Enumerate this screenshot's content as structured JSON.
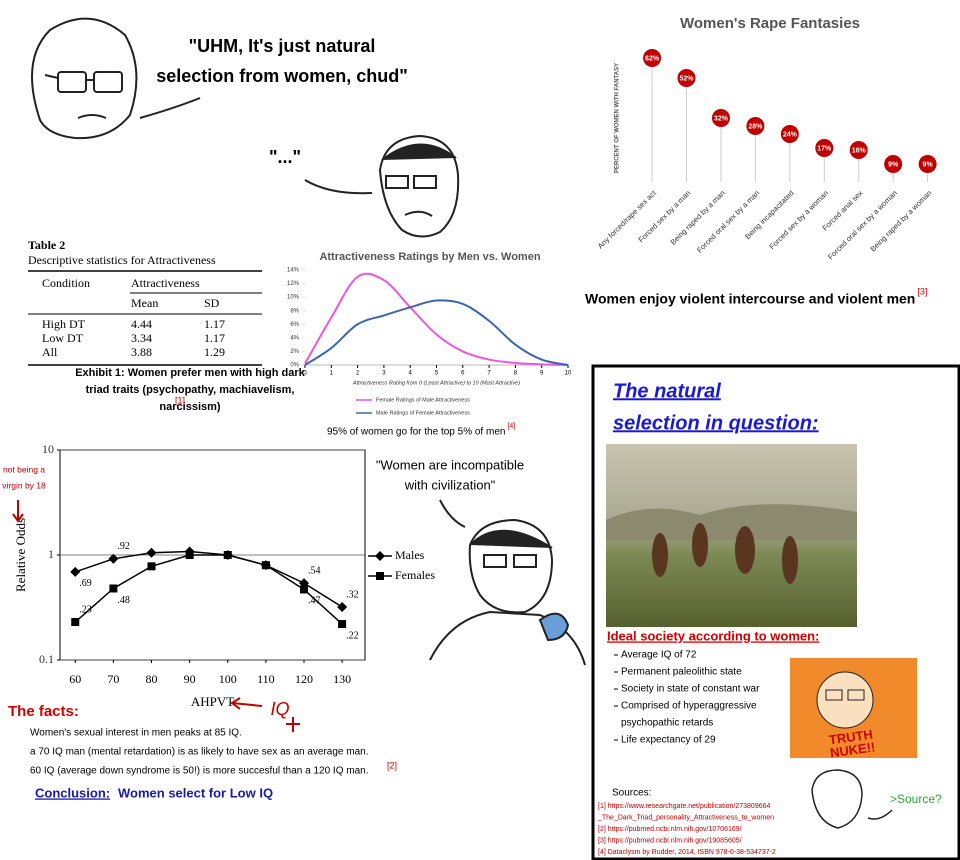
{
  "speech": {
    "wojak": [
      "\"UHM, It's just natural",
      "selection from women, chud\""
    ],
    "reply": "\"...\"",
    "incompatible": [
      "\"Women are incompatible",
      "with civilization\""
    ]
  },
  "chart_data": [
    {
      "type": "lollipop",
      "title": "Women's Rape Fantasies",
      "y_label": "PERCENT OF WOMEN WITH FANTASY",
      "categories": [
        "Any forced/rape sex act",
        "Forced sex by a man",
        "Being raped by a man",
        "Forced oral sex by a man",
        "Being incapacitated",
        "Forced sex by a woman",
        "Forced anal sex",
        "Forced oral sex by a woman",
        "Being raped by a woman"
      ],
      "values": [
        62,
        52,
        32,
        28,
        24,
        17,
        16,
        9,
        9
      ],
      "value_labels": [
        "62%",
        "52%",
        "32%",
        "28%",
        "24%",
        "17%",
        "16%",
        "9%",
        "9%"
      ],
      "color": "#c00000",
      "ylim": [
        0,
        65
      ],
      "caption": "Women enjoy  violent intercourse and violent men",
      "ref": "[3]"
    },
    {
      "type": "line",
      "title": "Attractiveness Ratings by Men vs. Women",
      "x_label": "Attractiveness Rating from 0 (Least Attractive) to 10 (Most Attractive)",
      "x": [
        0,
        1,
        2,
        3,
        4,
        5,
        6,
        7,
        8,
        9,
        10
      ],
      "xlim": [
        0,
        10
      ],
      "xticks": [
        0,
        1,
        2,
        3,
        4,
        5,
        6,
        7,
        8,
        9,
        10
      ],
      "ylim": [
        0,
        14
      ],
      "yticks": [
        {
          "value": 0,
          "label": "0%"
        },
        {
          "value": 2,
          "label": "2%"
        },
        {
          "value": 4,
          "label": "4%"
        },
        {
          "value": 6,
          "label": "6%"
        },
        {
          "value": 8,
          "label": "8%"
        },
        {
          "value": 10,
          "label": "10%"
        },
        {
          "value": 12,
          "label": "12%"
        },
        {
          "value": 14,
          "label": "14%"
        }
      ],
      "series": [
        {
          "name": "Female Ratings of Male Attractiveness",
          "color": "#ee55dd",
          "values": [
            0.2,
            7,
            13,
            12.5,
            8.5,
            4.5,
            2,
            0.8,
            0.3,
            0.1,
            0
          ]
        },
        {
          "name": "Male Ratings of Female Attractiveness",
          "color": "#3a66b0",
          "values": [
            0,
            2.5,
            6,
            7.3,
            8.5,
            9.5,
            9,
            6.5,
            3,
            0.8,
            0
          ]
        }
      ],
      "caption": "95% of women go for the top 5% of men",
      "ref": "[4]"
    },
    {
      "type": "line",
      "log_scale": true,
      "grid": true,
      "x_label": "AHPVT",
      "y_label": "Relative Odds",
      "x": [
        60,
        70,
        80,
        90,
        100,
        110,
        120,
        130
      ],
      "xlim": [
        56,
        136
      ],
      "xticks": [
        60,
        70,
        80,
        90,
        100,
        110,
        120,
        130
      ],
      "ylim": [
        0.1,
        10
      ],
      "yticks": [
        0.1,
        1,
        10
      ],
      "series": [
        {
          "name": "Males",
          "color": "#000000",
          "marker": "diamond",
          "values": [
            0.69,
            0.92,
            1.05,
            1.08,
            1.0,
            0.8,
            0.54,
            0.32
          ],
          "value_labels": [
            ".69",
            ".92",
            null,
            null,
            null,
            null,
            ".54",
            ".32"
          ]
        },
        {
          "name": "Females",
          "color": "#000000",
          "marker": "square",
          "values": [
            0.23,
            0.48,
            0.78,
            1.0,
            1.0,
            0.8,
            0.47,
            0.22
          ],
          "value_labels": [
            ".23",
            ".48",
            null,
            null,
            null,
            null,
            ".47",
            ".22"
          ]
        }
      ],
      "annotations": {
        "virgin": [
          "not being a",
          "virgin by 18"
        ],
        "iq": "IQ"
      }
    }
  ],
  "table": {
    "title": "Table 2",
    "caption": "Descriptive statistics for Attractiveness",
    "header": [
      "Condition",
      "Attractiveness"
    ],
    "subheader": [
      "Mean",
      "SD"
    ],
    "rows": [
      [
        "High DT",
        4.44,
        1.17
      ],
      [
        "Low DT",
        3.34,
        1.17
      ],
      [
        "All",
        3.88,
        1.29
      ]
    ],
    "exhibit": [
      "Exhibit 1: Women prefer men with high dark",
      "triad traits (psychopathy, machiavelism,",
      "narcissism)"
    ],
    "ref": "[1]"
  },
  "facts": {
    "heading": "The facts:",
    "lines": [
      "Women's sexual interest in men peaks at 85 IQ.",
      "a 70 IQ man (mental retardation) is as likely to have sex as an average man.",
      "60 IQ (average down syndrome is 50!) is more succesful than a 120 IQ man."
    ],
    "ref": "[2]",
    "conclusion_label": "Conclusion:",
    "conclusion": "Women select for Low IQ"
  },
  "panel": {
    "title": [
      "The natural",
      "selection in question:"
    ],
    "list_title": "Ideal society according to women:",
    "items": [
      [
        "Average IQ of 72"
      ],
      [
        "Permanent paleolithic state"
      ],
      [
        "Society in state of constant war"
      ],
      [
        "Comprised of hyperaggressive",
        "psychopathic retards"
      ],
      [
        "Life expectancy of 29"
      ]
    ],
    "truth": [
      "TRUTH",
      "NUKE!!"
    ],
    "sources_title": "Sources:",
    "sources": [
      "[1] https://www.researchgate.net/publication/273809664",
      "_The_Dark_Triad_personality_Attractiveness_to_women",
      "[2] https://pubmed.ncbi.nlm.nih.gov/10706169/",
      "[3] https://pubmed.ncbi.nlm.nih.gov/19085605/",
      "[4] Dataclysm by Rudder, 2014, ISBN 978-0-38-534737-2"
    ],
    "source_prompt": ">Source?"
  }
}
